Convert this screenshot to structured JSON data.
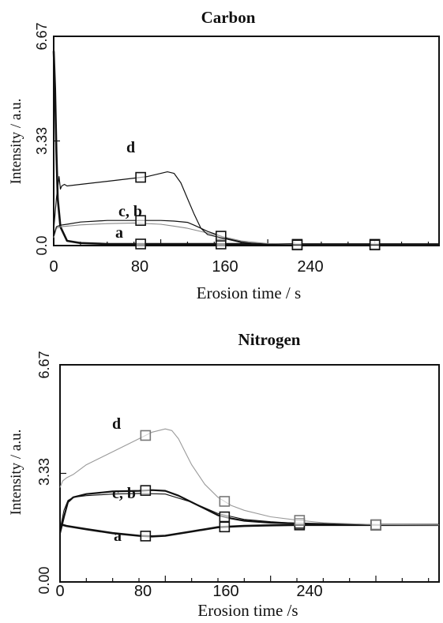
{
  "chart_data": [
    {
      "type": "line",
      "title": "Carbon",
      "xlabel": "Erosion time / s",
      "ylabel": "Intensity / a.u.",
      "xlim": [
        0,
        288
      ],
      "ylim": [
        0,
        6.67
      ],
      "xticks": [
        "0",
        "80",
        "160",
        "240"
      ],
      "yticks": [
        "0.0",
        "3.33",
        "6.67"
      ],
      "series": [
        {
          "name": "a",
          "x": [
            0,
            1,
            2,
            3,
            5,
            10,
            20,
            40,
            60,
            80,
            100,
            120,
            140,
            160,
            180,
            200,
            220,
            240,
            260,
            288
          ],
          "y": [
            6.2,
            5.0,
            3.0,
            1.5,
            0.6,
            0.15,
            0.08,
            0.05,
            0.05,
            0.05,
            0.05,
            0.05,
            0.05,
            0.04,
            0.04,
            0.04,
            0.04,
            0.04,
            0.04,
            0.04
          ],
          "markers_x": [
            65,
            125,
            182,
            240
          ],
          "color": "#111111",
          "width": 2.6
        },
        {
          "name": "b",
          "x": [
            0,
            2,
            5,
            10,
            20,
            40,
            60,
            80,
            90,
            100,
            110,
            120,
            130,
            140,
            160,
            180,
            200,
            240,
            288
          ],
          "y": [
            0.25,
            0.55,
            0.6,
            0.62,
            0.66,
            0.7,
            0.72,
            0.68,
            0.62,
            0.55,
            0.45,
            0.35,
            0.25,
            0.15,
            0.06,
            0.03,
            0.02,
            0.02,
            0.02
          ],
          "markers_x": [],
          "color": "#888888",
          "width": 1.1
        },
        {
          "name": "c",
          "x": [
            0,
            2,
            5,
            10,
            20,
            40,
            60,
            80,
            90,
            100,
            105,
            110,
            115,
            120,
            125,
            130,
            140,
            150,
            160,
            180,
            200,
            240,
            288
          ],
          "y": [
            0.3,
            0.6,
            0.65,
            0.68,
            0.75,
            0.8,
            0.8,
            0.8,
            0.78,
            0.74,
            0.65,
            0.55,
            0.45,
            0.38,
            0.3,
            0.22,
            0.12,
            0.06,
            0.03,
            0.02,
            0.02,
            0.02,
            0.02
          ],
          "markers_x": [
            65,
            125,
            182,
            240
          ],
          "color": "#111111",
          "width": 1.2
        },
        {
          "name": "d",
          "x": [
            0,
            2,
            4,
            5,
            6,
            8,
            10,
            20,
            40,
            60,
            70,
            80,
            85,
            90,
            95,
            100,
            105,
            110,
            115,
            120,
            125,
            130,
            140,
            160,
            180,
            200,
            240,
            288
          ],
          "y": [
            0.5,
            1.5,
            2.2,
            1.8,
            1.9,
            1.95,
            1.9,
            1.95,
            2.05,
            2.15,
            2.2,
            2.3,
            2.35,
            2.3,
            2.0,
            1.5,
            1.0,
            0.55,
            0.35,
            0.3,
            0.25,
            0.2,
            0.1,
            0.04,
            0.02,
            0.02,
            0.02,
            0.02
          ],
          "markers_x": [
            65
          ],
          "color": "#111111",
          "width": 1.2
        }
      ],
      "labels": [
        "d",
        "c, b",
        "a"
      ]
    },
    {
      "type": "line",
      "title": "Nitrogen",
      "xlabel": "Erosion time /s",
      "ylabel": "Intensity / a.u.",
      "xlim": [
        0,
        288
      ],
      "ylim": [
        0,
        6.67
      ],
      "xticks": [
        "0",
        "80",
        "160",
        "240"
      ],
      "yticks": [
        "0.00",
        "3.33",
        "6.67"
      ],
      "series": [
        {
          "name": "a",
          "x": [
            0,
            2,
            5,
            20,
            40,
            60,
            70,
            80,
            100,
            120,
            140,
            160,
            180,
            200,
            240,
            288
          ],
          "y": [
            1.7,
            1.75,
            1.72,
            1.62,
            1.5,
            1.42,
            1.4,
            1.42,
            1.55,
            1.68,
            1.72,
            1.74,
            1.75,
            1.75,
            1.75,
            1.75
          ],
          "markers_x": [
            65,
            125,
            182,
            240
          ],
          "color": "#111111",
          "width": 2.6
        },
        {
          "name": "b",
          "x": [
            0,
            3,
            6,
            10,
            20,
            40,
            60,
            80,
            100,
            120,
            140,
            160,
            180,
            200,
            240,
            288
          ],
          "y": [
            1.6,
            2.2,
            2.5,
            2.6,
            2.65,
            2.7,
            2.72,
            2.7,
            2.45,
            2.1,
            1.92,
            1.85,
            1.8,
            1.78,
            1.75,
            1.75
          ],
          "markers_x": [],
          "color": "#111111",
          "width": 1.1
        },
        {
          "name": "c",
          "x": [
            0,
            3,
            6,
            10,
            20,
            40,
            60,
            70,
            80,
            90,
            100,
            110,
            120,
            130,
            140,
            160,
            180,
            200,
            240,
            288
          ],
          "y": [
            1.5,
            2.0,
            2.45,
            2.6,
            2.7,
            2.78,
            2.8,
            2.82,
            2.8,
            2.65,
            2.45,
            2.25,
            2.05,
            1.95,
            1.88,
            1.82,
            1.8,
            1.78,
            1.75,
            1.75
          ],
          "markers_x": [
            65,
            125,
            182,
            240
          ],
          "color": "#111111",
          "width": 2.2
        },
        {
          "name": "d",
          "x": [
            0,
            2,
            5,
            10,
            20,
            40,
            60,
            70,
            80,
            85,
            90,
            95,
            100,
            110,
            120,
            130,
            140,
            160,
            180,
            200,
            240,
            288
          ],
          "y": [
            2.9,
            3.1,
            3.2,
            3.3,
            3.6,
            4.0,
            4.4,
            4.6,
            4.7,
            4.65,
            4.4,
            4.0,
            3.6,
            3.0,
            2.6,
            2.35,
            2.2,
            2.0,
            1.9,
            1.82,
            1.76,
            1.75
          ],
          "markers_x": [
            65,
            125,
            182,
            240
          ],
          "color": "#9a9a9a",
          "width": 1.1
        }
      ],
      "labels": [
        "d",
        "c,  b",
        "a"
      ]
    }
  ]
}
